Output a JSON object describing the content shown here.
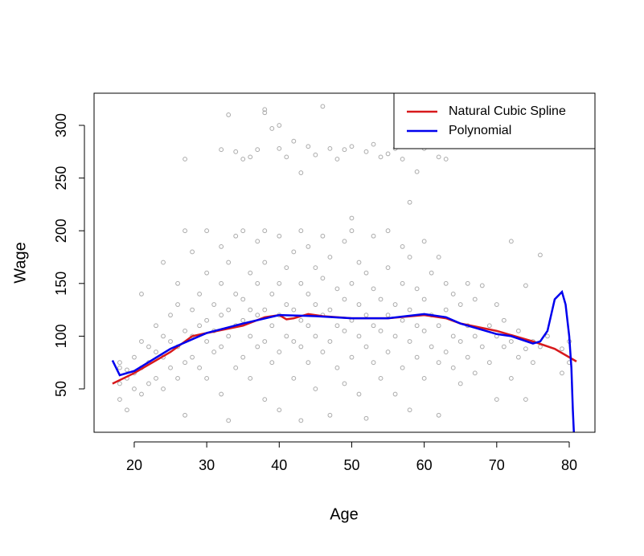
{
  "chart_data": {
    "type": "scatter",
    "xlabel": "Age",
    "ylabel": "Wage",
    "xlim": [
      14.46,
      83.55
    ],
    "ylim": [
      8.84,
      330.5
    ],
    "xticks": [
      20,
      30,
      40,
      50,
      60,
      70,
      80
    ],
    "yticks": [
      50,
      100,
      150,
      200,
      250,
      300
    ],
    "color": "#aaaaaa",
    "legend": "top-right",
    "x": [
      18,
      18,
      18,
      18,
      19,
      19,
      19,
      20,
      20,
      20,
      21,
      21,
      21,
      21,
      22,
      22,
      22,
      23,
      23,
      23,
      24,
      24,
      24,
      24,
      25,
      25,
      25,
      26,
      26,
      26,
      26,
      27,
      27,
      27,
      27,
      28,
      28,
      28,
      28,
      29,
      29,
      29,
      30,
      30,
      30,
      30,
      30,
      31,
      31,
      31,
      32,
      32,
      32,
      32,
      32,
      33,
      33,
      33,
      33,
      34,
      34,
      34,
      34,
      35,
      35,
      35,
      35,
      36,
      36,
      36,
      36,
      37,
      37,
      37,
      37,
      38,
      38,
      38,
      38,
      38,
      39,
      39,
      39,
      40,
      40,
      40,
      40,
      40,
      41,
      41,
      41,
      42,
      42,
      42,
      42,
      43,
      43,
      43,
      43,
      43,
      44,
      44,
      44,
      44,
      45,
      45,
      45,
      45,
      46,
      46,
      46,
      46,
      47,
      47,
      47,
      47,
      48,
      48,
      48,
      49,
      49,
      49,
      49,
      50,
      50,
      50,
      50,
      51,
      51,
      51,
      51,
      52,
      52,
      52,
      52,
      53,
      53,
      53,
      53,
      54,
      54,
      54,
      55,
      55,
      55,
      55,
      56,
      56,
      56,
      57,
      57,
      57,
      57,
      58,
      58,
      58,
      58,
      59,
      59,
      59,
      60,
      60,
      60,
      60,
      61,
      61,
      61,
      62,
      62,
      62,
      62,
      63,
      63,
      63,
      64,
      64,
      64,
      65,
      65,
      65,
      66,
      66,
      66,
      67,
      67,
      67,
      68,
      68,
      69,
      69,
      70,
      70,
      70,
      71,
      71,
      72,
      72,
      72,
      73,
      73,
      74,
      74,
      74,
      75,
      75,
      76,
      76,
      77,
      79,
      79,
      80,
      80,
      33,
      38,
      38,
      39,
      40,
      42,
      46,
      43,
      59,
      50,
      58,
      32,
      34,
      36,
      37,
      40,
      41,
      44,
      45,
      47,
      48,
      50,
      52,
      54,
      56,
      57,
      60,
      61,
      62,
      27,
      35,
      53,
      49,
      55,
      63
    ],
    "values": [
      40,
      55,
      70,
      75,
      30,
      60,
      68,
      50,
      65,
      80,
      45,
      70,
      95,
      140,
      55,
      75,
      90,
      60,
      85,
      110,
      50,
      80,
      100,
      170,
      70,
      95,
      120,
      60,
      90,
      130,
      150,
      25,
      75,
      105,
      200,
      80,
      100,
      125,
      180,
      70,
      110,
      140,
      60,
      95,
      115,
      160,
      200,
      85,
      105,
      130,
      45,
      90,
      120,
      150,
      185,
      20,
      100,
      125,
      170,
      70,
      110,
      140,
      195,
      80,
      115,
      135,
      200,
      60,
      100,
      125,
      160,
      90,
      120,
      150,
      190,
      40,
      95,
      125,
      170,
      200,
      75,
      110,
      140,
      30,
      85,
      120,
      150,
      195,
      100,
      130,
      165,
      60,
      95,
      125,
      180,
      20,
      90,
      115,
      150,
      200,
      75,
      110,
      140,
      185,
      50,
      100,
      130,
      165,
      85,
      120,
      155,
      195,
      25,
      95,
      125,
      175,
      70,
      110,
      145,
      55,
      105,
      135,
      190,
      80,
      115,
      150,
      200,
      45,
      100,
      130,
      170,
      22,
      90,
      120,
      160,
      75,
      110,
      145,
      195,
      60,
      105,
      135,
      85,
      120,
      165,
      200,
      45,
      100,
      130,
      70,
      115,
      150,
      185,
      30,
      95,
      125,
      175,
      80,
      110,
      145,
      60,
      105,
      135,
      190,
      90,
      120,
      160,
      25,
      75,
      110,
      175,
      85,
      125,
      150,
      70,
      100,
      140,
      55,
      95,
      130,
      80,
      110,
      150,
      65,
      100,
      135,
      90,
      148,
      75,
      110,
      40,
      100,
      130,
      90,
      115,
      60,
      95,
      190,
      80,
      105,
      40,
      88,
      148,
      75,
      95,
      90,
      177,
      100,
      65,
      88,
      75,
      95,
      310,
      312,
      315,
      297,
      300,
      285,
      318,
      255,
      256,
      212,
      227,
      277,
      275,
      270,
      277,
      278,
      270,
      280,
      272,
      278,
      268,
      280,
      275,
      270,
      278,
      268,
      278,
      281,
      270,
      268,
      268,
      282,
      277,
      273,
      268
    ],
    "series": [
      {
        "name": "Natural Cubic Spline",
        "color": "#d7191c",
        "type": "line",
        "x": [
          17,
          20,
          25,
          28,
          30,
          35,
          38,
          40,
          41,
          42,
          44,
          46,
          50,
          55,
          60,
          63,
          65,
          70,
          75,
          78,
          81
        ],
        "values": [
          55,
          65,
          85,
          100,
          103,
          110,
          118,
          120,
          116,
          117,
          121,
          119,
          117,
          117,
          120,
          117,
          112,
          105,
          95,
          88,
          76
        ]
      },
      {
        "name": "Polynomial",
        "color": "#0000ee",
        "type": "line",
        "x": [
          17,
          18,
          20,
          25,
          30,
          35,
          40,
          45,
          50,
          55,
          60,
          63,
          65,
          70,
          72,
          75,
          76,
          77,
          78,
          79,
          79.5,
          80,
          80.3,
          80.5,
          80.7
        ],
        "values": [
          77,
          63,
          67,
          88,
          103,
          112,
          120,
          119,
          117,
          117,
          121,
          118,
          112,
          102,
          100,
          93,
          95,
          105,
          135,
          142,
          130,
          100,
          70,
          30,
          0
        ]
      }
    ]
  }
}
